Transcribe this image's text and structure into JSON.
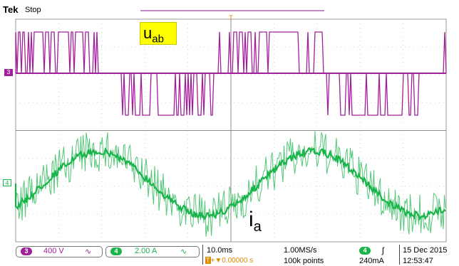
{
  "header": {
    "brand": "Tek",
    "state": "Stop"
  },
  "annotations": {
    "uab_main": "u",
    "uab_sub": "ab",
    "ia_main": "i",
    "ia_sub": "a"
  },
  "channels": {
    "ch3": {
      "number": "3",
      "scale": "400 V",
      "coupling": "∿",
      "color": "#a0209a"
    },
    "ch4": {
      "number": "4",
      "scale": "2.00 A",
      "coupling": "∿",
      "color": "#19b44a"
    }
  },
  "timebase": {
    "scale": "10.0ms",
    "position": "+▼0.00000 s",
    "sample_rate": "1.00MS/s",
    "record_length": "100k points"
  },
  "trigger": {
    "channel": "4",
    "slope": "ʃ",
    "level": "240mA",
    "marker": "T"
  },
  "datetime": {
    "date": "15 Dec  2015",
    "time": "12:53:47"
  },
  "colors": {
    "grid": "#9a9a9a",
    "background": "#ffffff",
    "ch3_trace": "#a0209a",
    "ch4_trace": "#19b44a",
    "trigger": "#e08a00",
    "annotation_bg": "#ffff00"
  }
}
